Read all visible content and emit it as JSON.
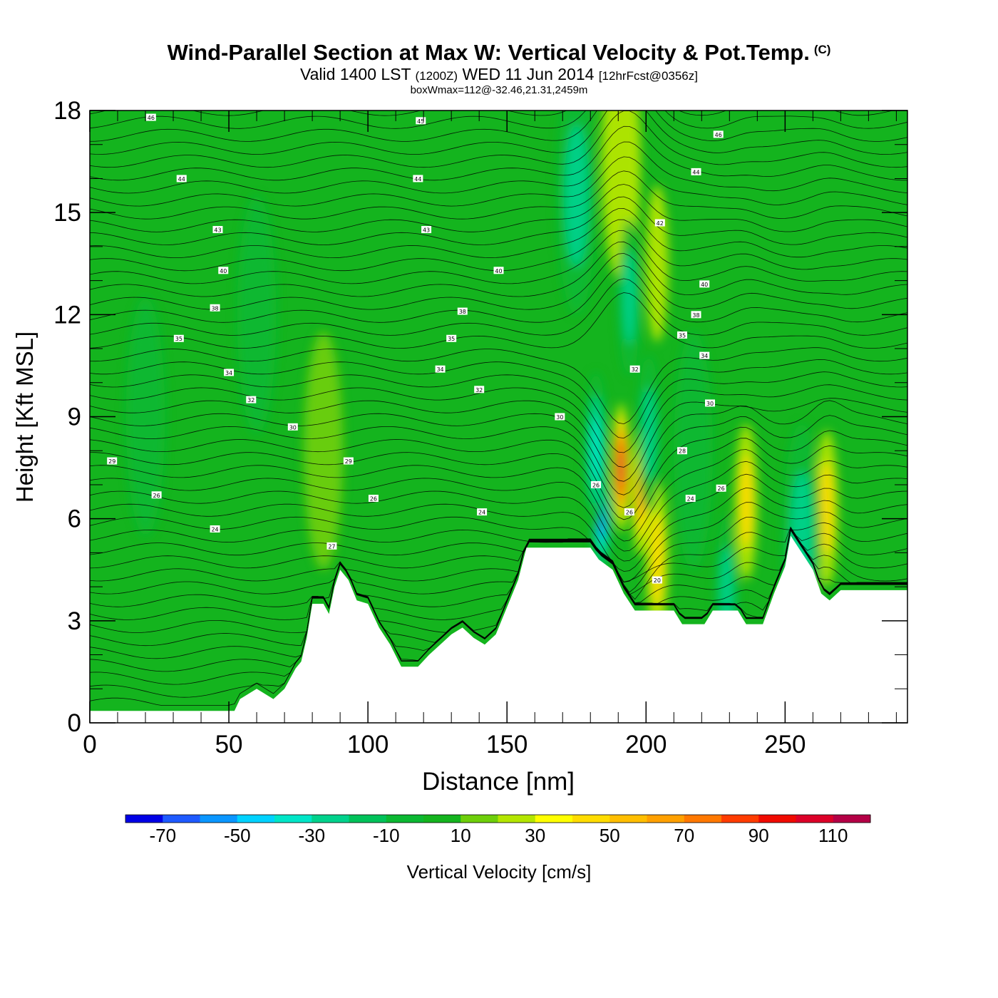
{
  "header": {
    "title": "Wind-Parallel Section at Max W: Vertical Velocity & Pot.Temp.",
    "copyright": "(C)",
    "valid_prefix": "Valid 1400 LST",
    "valid_utc": "(1200Z)",
    "valid_date": "WED 11 Jun 2014",
    "forecast": "[12hrFcst@0356z]",
    "boxwmax": "boxWmax=112@-32.46,21.31,2459m"
  },
  "chart_data": {
    "type": "heatmap",
    "xlabel": "Distance [nm]",
    "ylabel": "Height [Kft MSL]",
    "xlim": [
      0,
      294
    ],
    "ylim": [
      0,
      18
    ],
    "x_ticks": [
      0,
      50,
      100,
      150,
      200,
      250
    ],
    "y_ticks": [
      0,
      3,
      6,
      9,
      12,
      15,
      18
    ],
    "colorbar": {
      "label": "Vertical Velocity [cm/s]",
      "levels": [
        -80,
        -70,
        -60,
        -50,
        -40,
        -30,
        -20,
        -10,
        0,
        10,
        20,
        30,
        40,
        50,
        60,
        70,
        80,
        90,
        100,
        110,
        120
      ],
      "tick_labels": [
        "-70",
        "-50",
        "-30",
        "-10",
        "10",
        "30",
        "50",
        "70",
        "90",
        "110"
      ],
      "colors": [
        "#0000e6",
        "#1e5aff",
        "#0a96ff",
        "#00d2ff",
        "#00e6c8",
        "#00d28c",
        "#00c25a",
        "#0bb832",
        "#14b41e",
        "#6ecf0a",
        "#b4e600",
        "#ffff00",
        "#ffdc00",
        "#ffbe00",
        "#ffa000",
        "#ff7800",
        "#ff3c00",
        "#f00a00",
        "#dc0028",
        "#b40046"
      ]
    },
    "terrain_kft": [
      [
        0,
        0.35
      ],
      [
        52,
        0.35
      ],
      [
        54,
        0.7
      ],
      [
        60,
        1.0
      ],
      [
        66,
        0.7
      ],
      [
        70,
        1.0
      ],
      [
        74,
        1.6
      ],
      [
        76,
        1.8
      ],
      [
        78,
        2.5
      ],
      [
        80,
        3.5
      ],
      [
        84,
        3.5
      ],
      [
        86,
        3.2
      ],
      [
        88,
        4.0
      ],
      [
        90,
        4.5
      ],
      [
        93,
        4.2
      ],
      [
        96,
        3.6
      ],
      [
        100,
        3.5
      ],
      [
        104,
        2.8
      ],
      [
        108,
        2.3
      ],
      [
        112,
        1.65
      ],
      [
        118,
        1.65
      ],
      [
        122,
        2.0
      ],
      [
        126,
        2.3
      ],
      [
        130,
        2.6
      ],
      [
        134,
        2.8
      ],
      [
        138,
        2.5
      ],
      [
        142,
        2.3
      ],
      [
        146,
        2.6
      ],
      [
        150,
        3.4
      ],
      [
        154,
        4.2
      ],
      [
        157,
        5.15
      ],
      [
        180,
        5.15
      ],
      [
        183,
        4.8
      ],
      [
        188,
        4.5
      ],
      [
        192,
        3.8
      ],
      [
        196,
        3.3
      ],
      [
        210,
        3.3
      ],
      [
        213,
        2.9
      ],
      [
        221,
        2.9
      ],
      [
        224,
        3.3
      ],
      [
        233,
        3.3
      ],
      [
        236,
        2.9
      ],
      [
        242,
        2.9
      ],
      [
        246,
        3.8
      ],
      [
        250,
        4.6
      ],
      [
        252,
        5.5
      ],
      [
        256,
        5.0
      ],
      [
        260,
        4.5
      ],
      [
        263,
        3.8
      ],
      [
        266,
        3.6
      ],
      [
        270,
        3.9
      ],
      [
        294,
        3.9
      ]
    ],
    "velocity_features": [
      {
        "x": 191,
        "z": 7.5,
        "w_cms": 112
      },
      {
        "x": 198,
        "z": 6.8,
        "w_cms": 70
      },
      {
        "x": 204,
        "z": 4.8,
        "w_cms": 40
      },
      {
        "x": 204,
        "z": 13.5,
        "w_cms": 35
      },
      {
        "x": 191,
        "z": 16.5,
        "w_cms": 30
      },
      {
        "x": 236,
        "z": 6.5,
        "w_cms": 40
      },
      {
        "x": 265,
        "z": 6.3,
        "w_cms": 45
      },
      {
        "x": 184,
        "z": 6.2,
        "w_cms": -70
      },
      {
        "x": 182,
        "z": 8.0,
        "w_cms": -45
      },
      {
        "x": 201,
        "z": 8.5,
        "w_cms": -35
      },
      {
        "x": 194,
        "z": 12.5,
        "w_cms": -35
      },
      {
        "x": 175,
        "z": 15.5,
        "w_cms": -25
      },
      {
        "x": 229,
        "z": 3.8,
        "w_cms": -35
      },
      {
        "x": 256,
        "z": 5.3,
        "w_cms": -30
      },
      {
        "x": 217,
        "z": 8.0,
        "w_cms": -20
      },
      {
        "x": 84,
        "z": 8.0,
        "w_cms": 15
      },
      {
        "x": 60,
        "z": 12.0,
        "w_cms": -5
      },
      {
        "x": 20,
        "z": 9.0,
        "w_cms": -5
      }
    ],
    "contour_labels": [
      {
        "x": 22,
        "z": 17.8,
        "text": "46"
      },
      {
        "x": 119,
        "z": 17.7,
        "text": "45"
      },
      {
        "x": 226,
        "z": 17.3,
        "text": "46"
      },
      {
        "x": 33,
        "z": 16.0,
        "text": "44"
      },
      {
        "x": 118,
        "z": 16.0,
        "text": "44"
      },
      {
        "x": 218,
        "z": 16.2,
        "text": "44"
      },
      {
        "x": 46,
        "z": 14.5,
        "text": "43"
      },
      {
        "x": 121,
        "z": 14.5,
        "text": "43"
      },
      {
        "x": 205,
        "z": 14.7,
        "text": "42"
      },
      {
        "x": 48,
        "z": 13.3,
        "text": "40"
      },
      {
        "x": 147,
        "z": 13.3,
        "text": "40"
      },
      {
        "x": 221,
        "z": 12.9,
        "text": "40"
      },
      {
        "x": 45,
        "z": 12.2,
        "text": "38"
      },
      {
        "x": 134,
        "z": 12.1,
        "text": "38"
      },
      {
        "x": 218,
        "z": 12.0,
        "text": "38"
      },
      {
        "x": 32,
        "z": 11.3,
        "text": "35"
      },
      {
        "x": 130,
        "z": 11.3,
        "text": "35"
      },
      {
        "x": 213,
        "z": 11.4,
        "text": "35"
      },
      {
        "x": 50,
        "z": 10.3,
        "text": "34"
      },
      {
        "x": 126,
        "z": 10.4,
        "text": "34"
      },
      {
        "x": 221,
        "z": 10.8,
        "text": "34"
      },
      {
        "x": 196,
        "z": 10.4,
        "text": "32"
      },
      {
        "x": 58,
        "z": 9.5,
        "text": "32"
      },
      {
        "x": 140,
        "z": 9.8,
        "text": "32"
      },
      {
        "x": 73,
        "z": 8.7,
        "text": "30"
      },
      {
        "x": 169,
        "z": 9.0,
        "text": "30"
      },
      {
        "x": 223,
        "z": 9.4,
        "text": "30"
      },
      {
        "x": 8,
        "z": 7.7,
        "text": "29"
      },
      {
        "x": 93,
        "z": 7.7,
        "text": "29"
      },
      {
        "x": 213,
        "z": 8.0,
        "text": "28"
      },
      {
        "x": 182,
        "z": 7.0,
        "text": "26"
      },
      {
        "x": 24,
        "z": 6.7,
        "text": "26"
      },
      {
        "x": 102,
        "z": 6.6,
        "text": "26"
      },
      {
        "x": 227,
        "z": 6.9,
        "text": "26"
      },
      {
        "x": 141,
        "z": 6.2,
        "text": "24"
      },
      {
        "x": 216,
        "z": 6.6,
        "text": "24"
      },
      {
        "x": 45,
        "z": 5.7,
        "text": "24"
      },
      {
        "x": 194,
        "z": 6.2,
        "text": "26"
      },
      {
        "x": 87,
        "z": 5.2,
        "text": "27"
      },
      {
        "x": 204,
        "z": 4.2,
        "text": "20"
      }
    ]
  }
}
